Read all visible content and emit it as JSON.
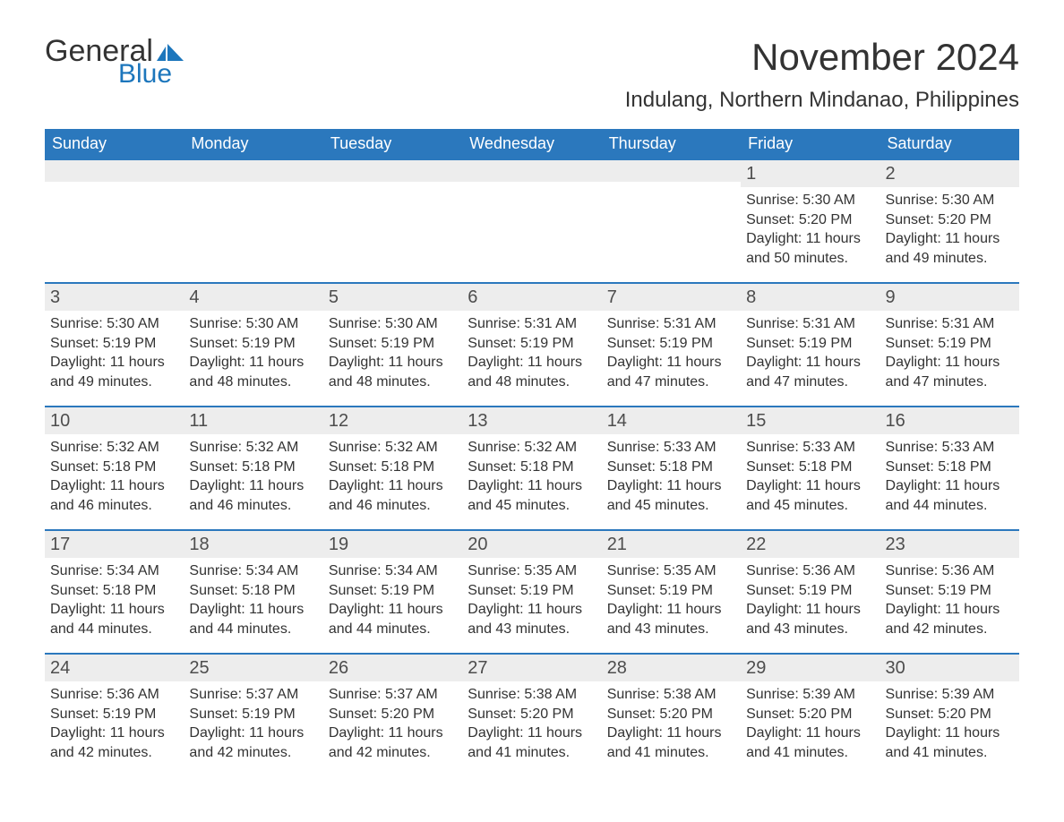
{
  "brand": {
    "word1": "General",
    "word2": "Blue",
    "flag_color": "#1c76bc"
  },
  "title": "November 2024",
  "location": "Indulang, Northern Mindanao, Philippines",
  "colors": {
    "header_bg": "#2b78bd",
    "header_text": "#ffffff",
    "daynum_bg": "#ededed",
    "daynum_border": "#2b78bd",
    "body_text": "#333333",
    "page_bg": "#ffffff"
  },
  "fonts": {
    "title_size_pt": 32,
    "location_size_pt": 18,
    "dayheader_size_pt": 14,
    "daynum_size_pt": 15,
    "cell_size_pt": 12
  },
  "day_headers": [
    "Sunday",
    "Monday",
    "Tuesday",
    "Wednesday",
    "Thursday",
    "Friday",
    "Saturday"
  ],
  "weeks": [
    [
      {
        "n": "",
        "sunrise": "",
        "sunset": "",
        "daylight": ""
      },
      {
        "n": "",
        "sunrise": "",
        "sunset": "",
        "daylight": ""
      },
      {
        "n": "",
        "sunrise": "",
        "sunset": "",
        "daylight": ""
      },
      {
        "n": "",
        "sunrise": "",
        "sunset": "",
        "daylight": ""
      },
      {
        "n": "",
        "sunrise": "",
        "sunset": "",
        "daylight": ""
      },
      {
        "n": "1",
        "sunrise": "Sunrise: 5:30 AM",
        "sunset": "Sunset: 5:20 PM",
        "daylight": "Daylight: 11 hours and 50 minutes."
      },
      {
        "n": "2",
        "sunrise": "Sunrise: 5:30 AM",
        "sunset": "Sunset: 5:20 PM",
        "daylight": "Daylight: 11 hours and 49 minutes."
      }
    ],
    [
      {
        "n": "3",
        "sunrise": "Sunrise: 5:30 AM",
        "sunset": "Sunset: 5:19 PM",
        "daylight": "Daylight: 11 hours and 49 minutes."
      },
      {
        "n": "4",
        "sunrise": "Sunrise: 5:30 AM",
        "sunset": "Sunset: 5:19 PM",
        "daylight": "Daylight: 11 hours and 48 minutes."
      },
      {
        "n": "5",
        "sunrise": "Sunrise: 5:30 AM",
        "sunset": "Sunset: 5:19 PM",
        "daylight": "Daylight: 11 hours and 48 minutes."
      },
      {
        "n": "6",
        "sunrise": "Sunrise: 5:31 AM",
        "sunset": "Sunset: 5:19 PM",
        "daylight": "Daylight: 11 hours and 48 minutes."
      },
      {
        "n": "7",
        "sunrise": "Sunrise: 5:31 AM",
        "sunset": "Sunset: 5:19 PM",
        "daylight": "Daylight: 11 hours and 47 minutes."
      },
      {
        "n": "8",
        "sunrise": "Sunrise: 5:31 AM",
        "sunset": "Sunset: 5:19 PM",
        "daylight": "Daylight: 11 hours and 47 minutes."
      },
      {
        "n": "9",
        "sunrise": "Sunrise: 5:31 AM",
        "sunset": "Sunset: 5:19 PM",
        "daylight": "Daylight: 11 hours and 47 minutes."
      }
    ],
    [
      {
        "n": "10",
        "sunrise": "Sunrise: 5:32 AM",
        "sunset": "Sunset: 5:18 PM",
        "daylight": "Daylight: 11 hours and 46 minutes."
      },
      {
        "n": "11",
        "sunrise": "Sunrise: 5:32 AM",
        "sunset": "Sunset: 5:18 PM",
        "daylight": "Daylight: 11 hours and 46 minutes."
      },
      {
        "n": "12",
        "sunrise": "Sunrise: 5:32 AM",
        "sunset": "Sunset: 5:18 PM",
        "daylight": "Daylight: 11 hours and 46 minutes."
      },
      {
        "n": "13",
        "sunrise": "Sunrise: 5:32 AM",
        "sunset": "Sunset: 5:18 PM",
        "daylight": "Daylight: 11 hours and 45 minutes."
      },
      {
        "n": "14",
        "sunrise": "Sunrise: 5:33 AM",
        "sunset": "Sunset: 5:18 PM",
        "daylight": "Daylight: 11 hours and 45 minutes."
      },
      {
        "n": "15",
        "sunrise": "Sunrise: 5:33 AM",
        "sunset": "Sunset: 5:18 PM",
        "daylight": "Daylight: 11 hours and 45 minutes."
      },
      {
        "n": "16",
        "sunrise": "Sunrise: 5:33 AM",
        "sunset": "Sunset: 5:18 PM",
        "daylight": "Daylight: 11 hours and 44 minutes."
      }
    ],
    [
      {
        "n": "17",
        "sunrise": "Sunrise: 5:34 AM",
        "sunset": "Sunset: 5:18 PM",
        "daylight": "Daylight: 11 hours and 44 minutes."
      },
      {
        "n": "18",
        "sunrise": "Sunrise: 5:34 AM",
        "sunset": "Sunset: 5:18 PM",
        "daylight": "Daylight: 11 hours and 44 minutes."
      },
      {
        "n": "19",
        "sunrise": "Sunrise: 5:34 AM",
        "sunset": "Sunset: 5:19 PM",
        "daylight": "Daylight: 11 hours and 44 minutes."
      },
      {
        "n": "20",
        "sunrise": "Sunrise: 5:35 AM",
        "sunset": "Sunset: 5:19 PM",
        "daylight": "Daylight: 11 hours and 43 minutes."
      },
      {
        "n": "21",
        "sunrise": "Sunrise: 5:35 AM",
        "sunset": "Sunset: 5:19 PM",
        "daylight": "Daylight: 11 hours and 43 minutes."
      },
      {
        "n": "22",
        "sunrise": "Sunrise: 5:36 AM",
        "sunset": "Sunset: 5:19 PM",
        "daylight": "Daylight: 11 hours and 43 minutes."
      },
      {
        "n": "23",
        "sunrise": "Sunrise: 5:36 AM",
        "sunset": "Sunset: 5:19 PM",
        "daylight": "Daylight: 11 hours and 42 minutes."
      }
    ],
    [
      {
        "n": "24",
        "sunrise": "Sunrise: 5:36 AM",
        "sunset": "Sunset: 5:19 PM",
        "daylight": "Daylight: 11 hours and 42 minutes."
      },
      {
        "n": "25",
        "sunrise": "Sunrise: 5:37 AM",
        "sunset": "Sunset: 5:19 PM",
        "daylight": "Daylight: 11 hours and 42 minutes."
      },
      {
        "n": "26",
        "sunrise": "Sunrise: 5:37 AM",
        "sunset": "Sunset: 5:20 PM",
        "daylight": "Daylight: 11 hours and 42 minutes."
      },
      {
        "n": "27",
        "sunrise": "Sunrise: 5:38 AM",
        "sunset": "Sunset: 5:20 PM",
        "daylight": "Daylight: 11 hours and 41 minutes."
      },
      {
        "n": "28",
        "sunrise": "Sunrise: 5:38 AM",
        "sunset": "Sunset: 5:20 PM",
        "daylight": "Daylight: 11 hours and 41 minutes."
      },
      {
        "n": "29",
        "sunrise": "Sunrise: 5:39 AM",
        "sunset": "Sunset: 5:20 PM",
        "daylight": "Daylight: 11 hours and 41 minutes."
      },
      {
        "n": "30",
        "sunrise": "Sunrise: 5:39 AM",
        "sunset": "Sunset: 5:20 PM",
        "daylight": "Daylight: 11 hours and 41 minutes."
      }
    ]
  ]
}
